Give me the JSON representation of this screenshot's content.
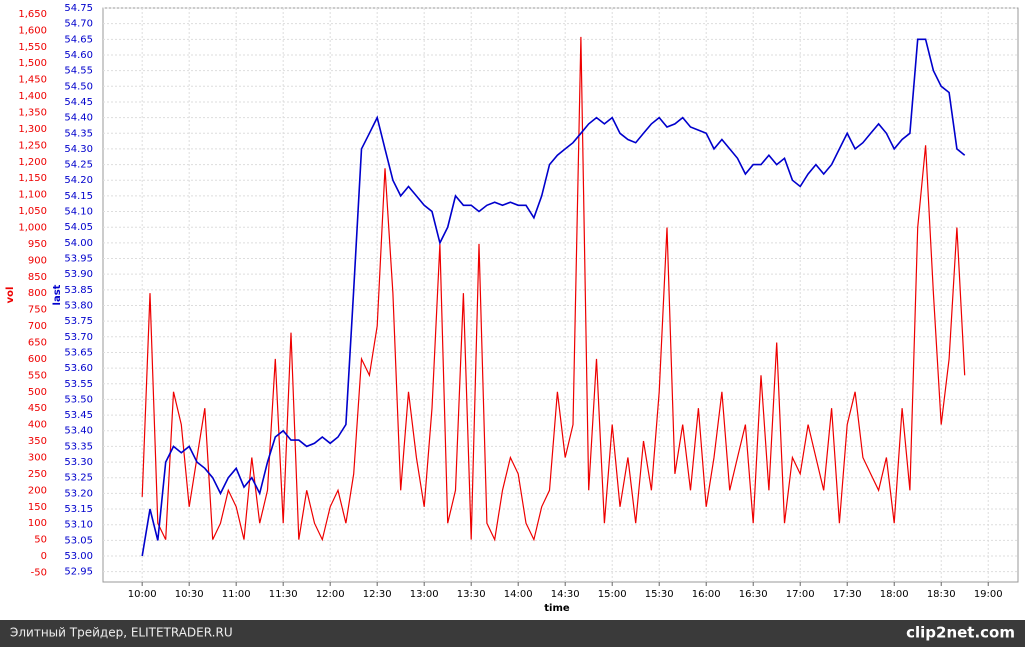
{
  "chart_data": {
    "type": "line",
    "xlabel": "time",
    "ylabel": "last",
    "y2label": "vol",
    "x": [
      600,
      605,
      610,
      615,
      620,
      625,
      630,
      635,
      640,
      645,
      650,
      655,
      660,
      665,
      670,
      675,
      680,
      685,
      690,
      695,
      700,
      705,
      710,
      715,
      720,
      725,
      730,
      735,
      740,
      745,
      750,
      755,
      760,
      765,
      770,
      775,
      780,
      785,
      790,
      795,
      800,
      805,
      810,
      815,
      820,
      825,
      830,
      835,
      840,
      845,
      850,
      855,
      860,
      865,
      870,
      875,
      880,
      885,
      890,
      895,
      900,
      905,
      910,
      915,
      920,
      925,
      930,
      935,
      940,
      945,
      950,
      955,
      960,
      965,
      970,
      975,
      980,
      985,
      990,
      995,
      1000,
      1005,
      1010,
      1015,
      1020,
      1025,
      1030,
      1035,
      1040,
      1045,
      1050,
      1055,
      1060,
      1065,
      1070,
      1075,
      1080,
      1085,
      1090,
      1095,
      1100,
      1105,
      1110,
      1115,
      1120,
      1125
    ],
    "series": [
      {
        "name": "last",
        "color": "#0000cc",
        "values": [
          53.0,
          53.15,
          53.05,
          53.3,
          53.35,
          53.33,
          53.35,
          53.3,
          53.28,
          53.25,
          53.2,
          53.25,
          53.28,
          53.22,
          53.25,
          53.2,
          53.3,
          53.38,
          53.4,
          53.37,
          53.37,
          53.35,
          53.36,
          53.38,
          53.36,
          53.38,
          53.42,
          53.85,
          54.3,
          54.35,
          54.4,
          54.3,
          54.2,
          54.15,
          54.18,
          54.15,
          54.12,
          54.1,
          54.0,
          54.05,
          54.15,
          54.12,
          54.12,
          54.1,
          54.12,
          54.13,
          54.12,
          54.13,
          54.12,
          54.12,
          54.08,
          54.15,
          54.25,
          54.28,
          54.3,
          54.32,
          54.35,
          54.38,
          54.4,
          54.38,
          54.4,
          54.35,
          54.33,
          54.32,
          54.35,
          54.38,
          54.4,
          54.37,
          54.38,
          54.4,
          54.37,
          54.36,
          54.35,
          54.3,
          54.33,
          54.3,
          54.27,
          54.22,
          54.25,
          54.25,
          54.28,
          54.25,
          54.27,
          54.2,
          54.18,
          54.22,
          54.25,
          54.22,
          54.25,
          54.3,
          54.35,
          54.3,
          54.32,
          54.35,
          54.38,
          54.35,
          54.3,
          54.33,
          54.35,
          54.65,
          54.65,
          54.55,
          54.5,
          54.48,
          54.3,
          54.28
        ]
      },
      {
        "name": "vol",
        "color": "#ee0000",
        "axis": "y2",
        "values": [
          180,
          800,
          100,
          50,
          500,
          400,
          150,
          300,
          450,
          50,
          100,
          200,
          150,
          50,
          300,
          100,
          200,
          600,
          100,
          680,
          50,
          200,
          100,
          50,
          150,
          200,
          100,
          250,
          600,
          550,
          700,
          1180,
          800,
          200,
          500,
          300,
          150,
          450,
          950,
          100,
          200,
          800,
          50,
          950,
          100,
          50,
          200,
          300,
          250,
          100,
          50,
          150,
          200,
          500,
          300,
          400,
          1580,
          200,
          600,
          100,
          400,
          150,
          300,
          100,
          350,
          200,
          500,
          1000,
          250,
          400,
          200,
          450,
          150,
          300,
          500,
          200,
          300,
          400,
          100,
          550,
          200,
          650,
          100,
          300,
          250,
          400,
          300,
          200,
          450,
          100,
          400,
          500,
          300,
          250,
          200,
          300,
          100,
          450,
          200,
          1000,
          1250,
          800,
          400,
          600,
          1000,
          550
        ]
      }
    ],
    "xlim": [
      575,
      1159
    ],
    "xticks": [
      {
        "value": 600,
        "label": "10:00"
      },
      {
        "value": 630,
        "label": "10:30"
      },
      {
        "value": 660,
        "label": "11:00"
      },
      {
        "value": 690,
        "label": "11:30"
      },
      {
        "value": 720,
        "label": "12:00"
      },
      {
        "value": 750,
        "label": "12:30"
      },
      {
        "value": 780,
        "label": "13:00"
      },
      {
        "value": 810,
        "label": "13:30"
      },
      {
        "value": 840,
        "label": "14:00"
      },
      {
        "value": 870,
        "label": "14:30"
      },
      {
        "value": 900,
        "label": "15:00"
      },
      {
        "value": 930,
        "label": "15:30"
      },
      {
        "value": 960,
        "label": "16:00"
      },
      {
        "value": 990,
        "label": "16:30"
      },
      {
        "value": 1020,
        "label": "17:00"
      },
      {
        "value": 1050,
        "label": "17:30"
      },
      {
        "value": 1080,
        "label": "18:00"
      },
      {
        "value": 1110,
        "label": "18:30"
      },
      {
        "value": 1140,
        "label": "19:00"
      }
    ],
    "ylim": [
      52.917,
      54.75
    ],
    "yticks": [
      52.95,
      {
        "value": 53,
        "label": "53.00"
      },
      53.05,
      {
        "value": 53.1,
        "label": "53.10"
      },
      53.15,
      {
        "value": 53.2,
        "label": "53.20"
      },
      53.25,
      {
        "value": 53.3,
        "label": "53.30"
      },
      53.35,
      {
        "value": 53.4,
        "label": "53.40"
      },
      53.45,
      {
        "value": 53.5,
        "label": "53.50"
      },
      53.55,
      {
        "value": 53.6,
        "label": "53.60"
      },
      53.65,
      {
        "value": 53.7,
        "label": "53.70"
      },
      53.75,
      {
        "value": 53.8,
        "label": "53.80"
      },
      53.85,
      {
        "value": 53.9,
        "label": "53.90"
      },
      53.95,
      {
        "value": 54,
        "label": "54.00"
      },
      54.05,
      {
        "value": 54.1,
        "label": "54.10"
      },
      54.15,
      {
        "value": 54.2,
        "label": "54.20"
      },
      54.25,
      {
        "value": 54.3,
        "label": "54.30"
      },
      54.35,
      {
        "value": 54.4,
        "label": "54.40"
      },
      54.45,
      {
        "value": 54.5,
        "label": "54.50"
      },
      54.55,
      {
        "value": 54.6,
        "label": "54.60"
      },
      54.65,
      {
        "value": 54.7,
        "label": "54.70"
      },
      54.75
    ],
    "y2lim": [
      -79,
      1668
    ],
    "y2ticks": [
      -50,
      0,
      50,
      100,
      150,
      200,
      250,
      300,
      350,
      400,
      450,
      500,
      550,
      600,
      650,
      700,
      750,
      800,
      850,
      900,
      950,
      {
        "value": 1000,
        "label": "1,000"
      },
      {
        "value": 1050,
        "label": "1,050"
      },
      {
        "value": 1100,
        "label": "1,100"
      },
      {
        "value": 1150,
        "label": "1,150"
      },
      {
        "value": 1200,
        "label": "1,200"
      },
      {
        "value": 1250,
        "label": "1,250"
      },
      {
        "value": 1300,
        "label": "1,300"
      },
      {
        "value": 1350,
        "label": "1,350"
      },
      {
        "value": 1400,
        "label": "1,400"
      },
      {
        "value": 1450,
        "label": "1,450"
      },
      {
        "value": 1500,
        "label": "1,500"
      },
      {
        "value": 1550,
        "label": "1,550"
      },
      {
        "value": 1600,
        "label": "1,600"
      },
      {
        "value": 1650,
        "label": "1,650"
      }
    ],
    "grid": true
  },
  "footer": {
    "caption": "Элитный Трейдер, ELITETRADER.RU",
    "brand": "clip2net.com"
  }
}
